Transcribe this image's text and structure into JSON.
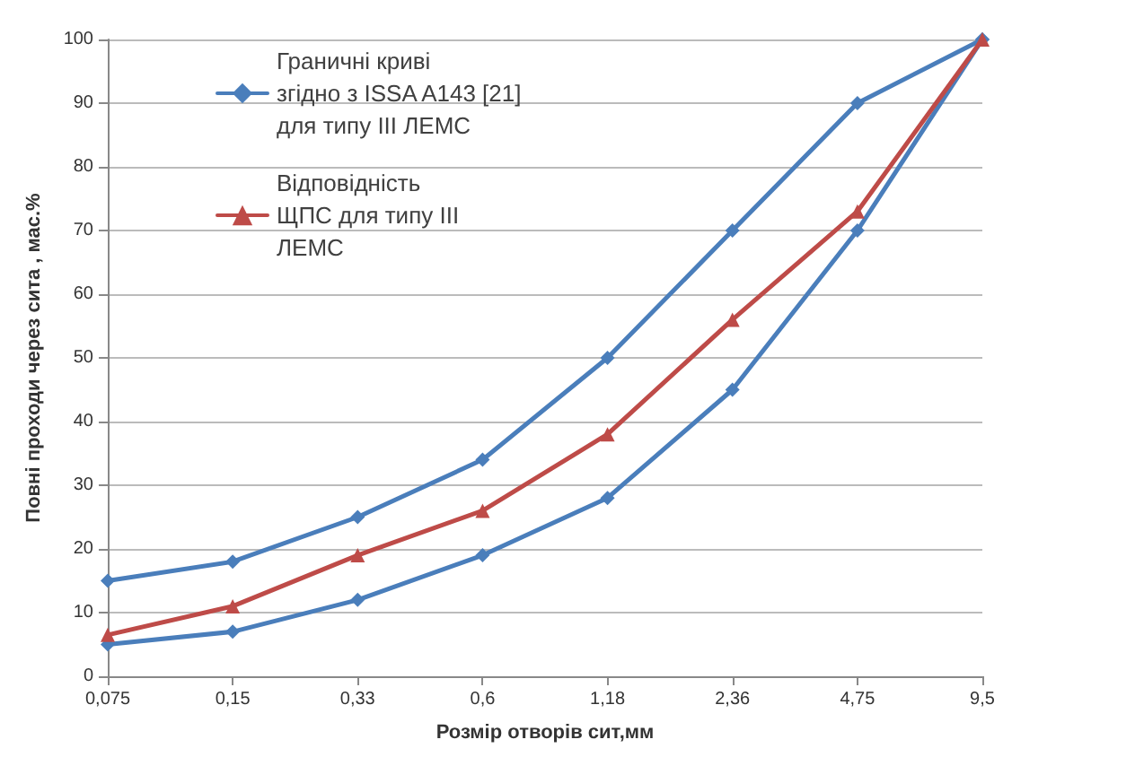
{
  "chart_data": {
    "type": "line",
    "xlabel": "Розмір отворів сит,мм",
    "ylabel": "Повні проходи через сита , мас.%",
    "categories": [
      "0,075",
      "0,15",
      "0,33",
      "0,6",
      "1,18",
      "2,36",
      "4,75",
      "9,5"
    ],
    "series": [
      {
        "name": "Граничні криві згідно з ISSA A143 [21]  для типу ІІІ ЛЕМС",
        "color": "#4a7ebb",
        "marker": "diamond",
        "values": [
          15,
          18,
          25,
          34,
          50,
          70,
          90,
          100
        ]
      },
      {
        "color": "#4a7ebb",
        "marker": "diamond",
        "values": [
          5,
          7,
          12,
          19,
          28,
          45,
          70,
          100
        ]
      },
      {
        "name": "Відповідність ЩПС для типу ІІІ ЛЕМС",
        "color": "#be4b48",
        "marker": "triangle",
        "values": [
          6.5,
          11,
          19,
          26,
          38,
          56,
          73,
          100
        ]
      }
    ],
    "ylim": [
      0,
      100
    ],
    "yticks": [
      0,
      10,
      20,
      30,
      40,
      50,
      60,
      70,
      80,
      90,
      100
    ],
    "grid": "y",
    "legend": "top left",
    "line_style": "solid"
  }
}
